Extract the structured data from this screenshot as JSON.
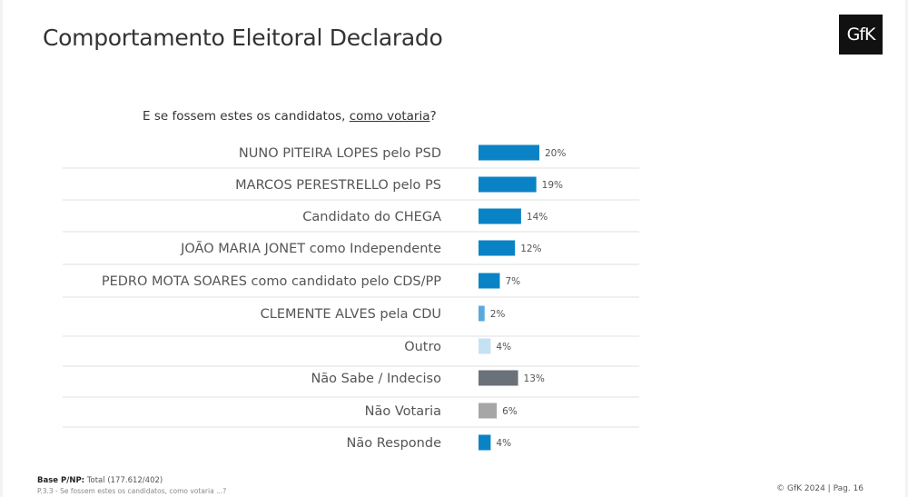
{
  "header": {
    "title": "Comportamento Eleitoral Declarado",
    "logo_text": "GfK"
  },
  "question": {
    "prefix": "E se fossem estes os candidatos, ",
    "underlined": "como votaria",
    "suffix": "?"
  },
  "chart_data": {
    "type": "bar",
    "orientation": "horizontal",
    "title": "E se fossem estes os candidatos, como votaria?",
    "xlabel": "",
    "ylabel": "",
    "xlim": [
      0,
      20
    ],
    "grid": false,
    "categories": [
      "NUNO PITEIRA LOPES pelo PSD",
      "MARCOS PERESTRELLO pelo PS",
      "Candidato do CHEGA",
      "JOÃO MARIA JONET como Independente",
      "PEDRO MOTA SOARES como candidato pelo CDS/PP",
      "CLEMENTE ALVES pela CDU",
      "Outro",
      "Não Sabe / Indeciso",
      "Não Votaria",
      "Não Responde"
    ],
    "values": [
      20,
      19,
      14,
      12,
      7,
      2,
      4,
      13,
      6,
      4
    ],
    "value_labels": [
      "20%",
      "19%",
      "14%",
      "12%",
      "7%",
      "2%",
      "4%",
      "13%",
      "6%",
      "4%"
    ],
    "bar_colors": [
      "#0a83c6",
      "#0a83c6",
      "#0a83c6",
      "#0a83c6",
      "#0a83c6",
      "#5aa9de",
      "#c5e2f3",
      "#6b7178",
      "#a6a6a6",
      "#0a83c6"
    ]
  },
  "footer": {
    "base_label": "Base P/NP:",
    "base_value": " Total (177.612/402)",
    "question_ref": "P.3.3 - Se fossem estes os candidatos, como votaria ...?",
    "copyright": "© GfK 2024  | Pag. 16"
  }
}
